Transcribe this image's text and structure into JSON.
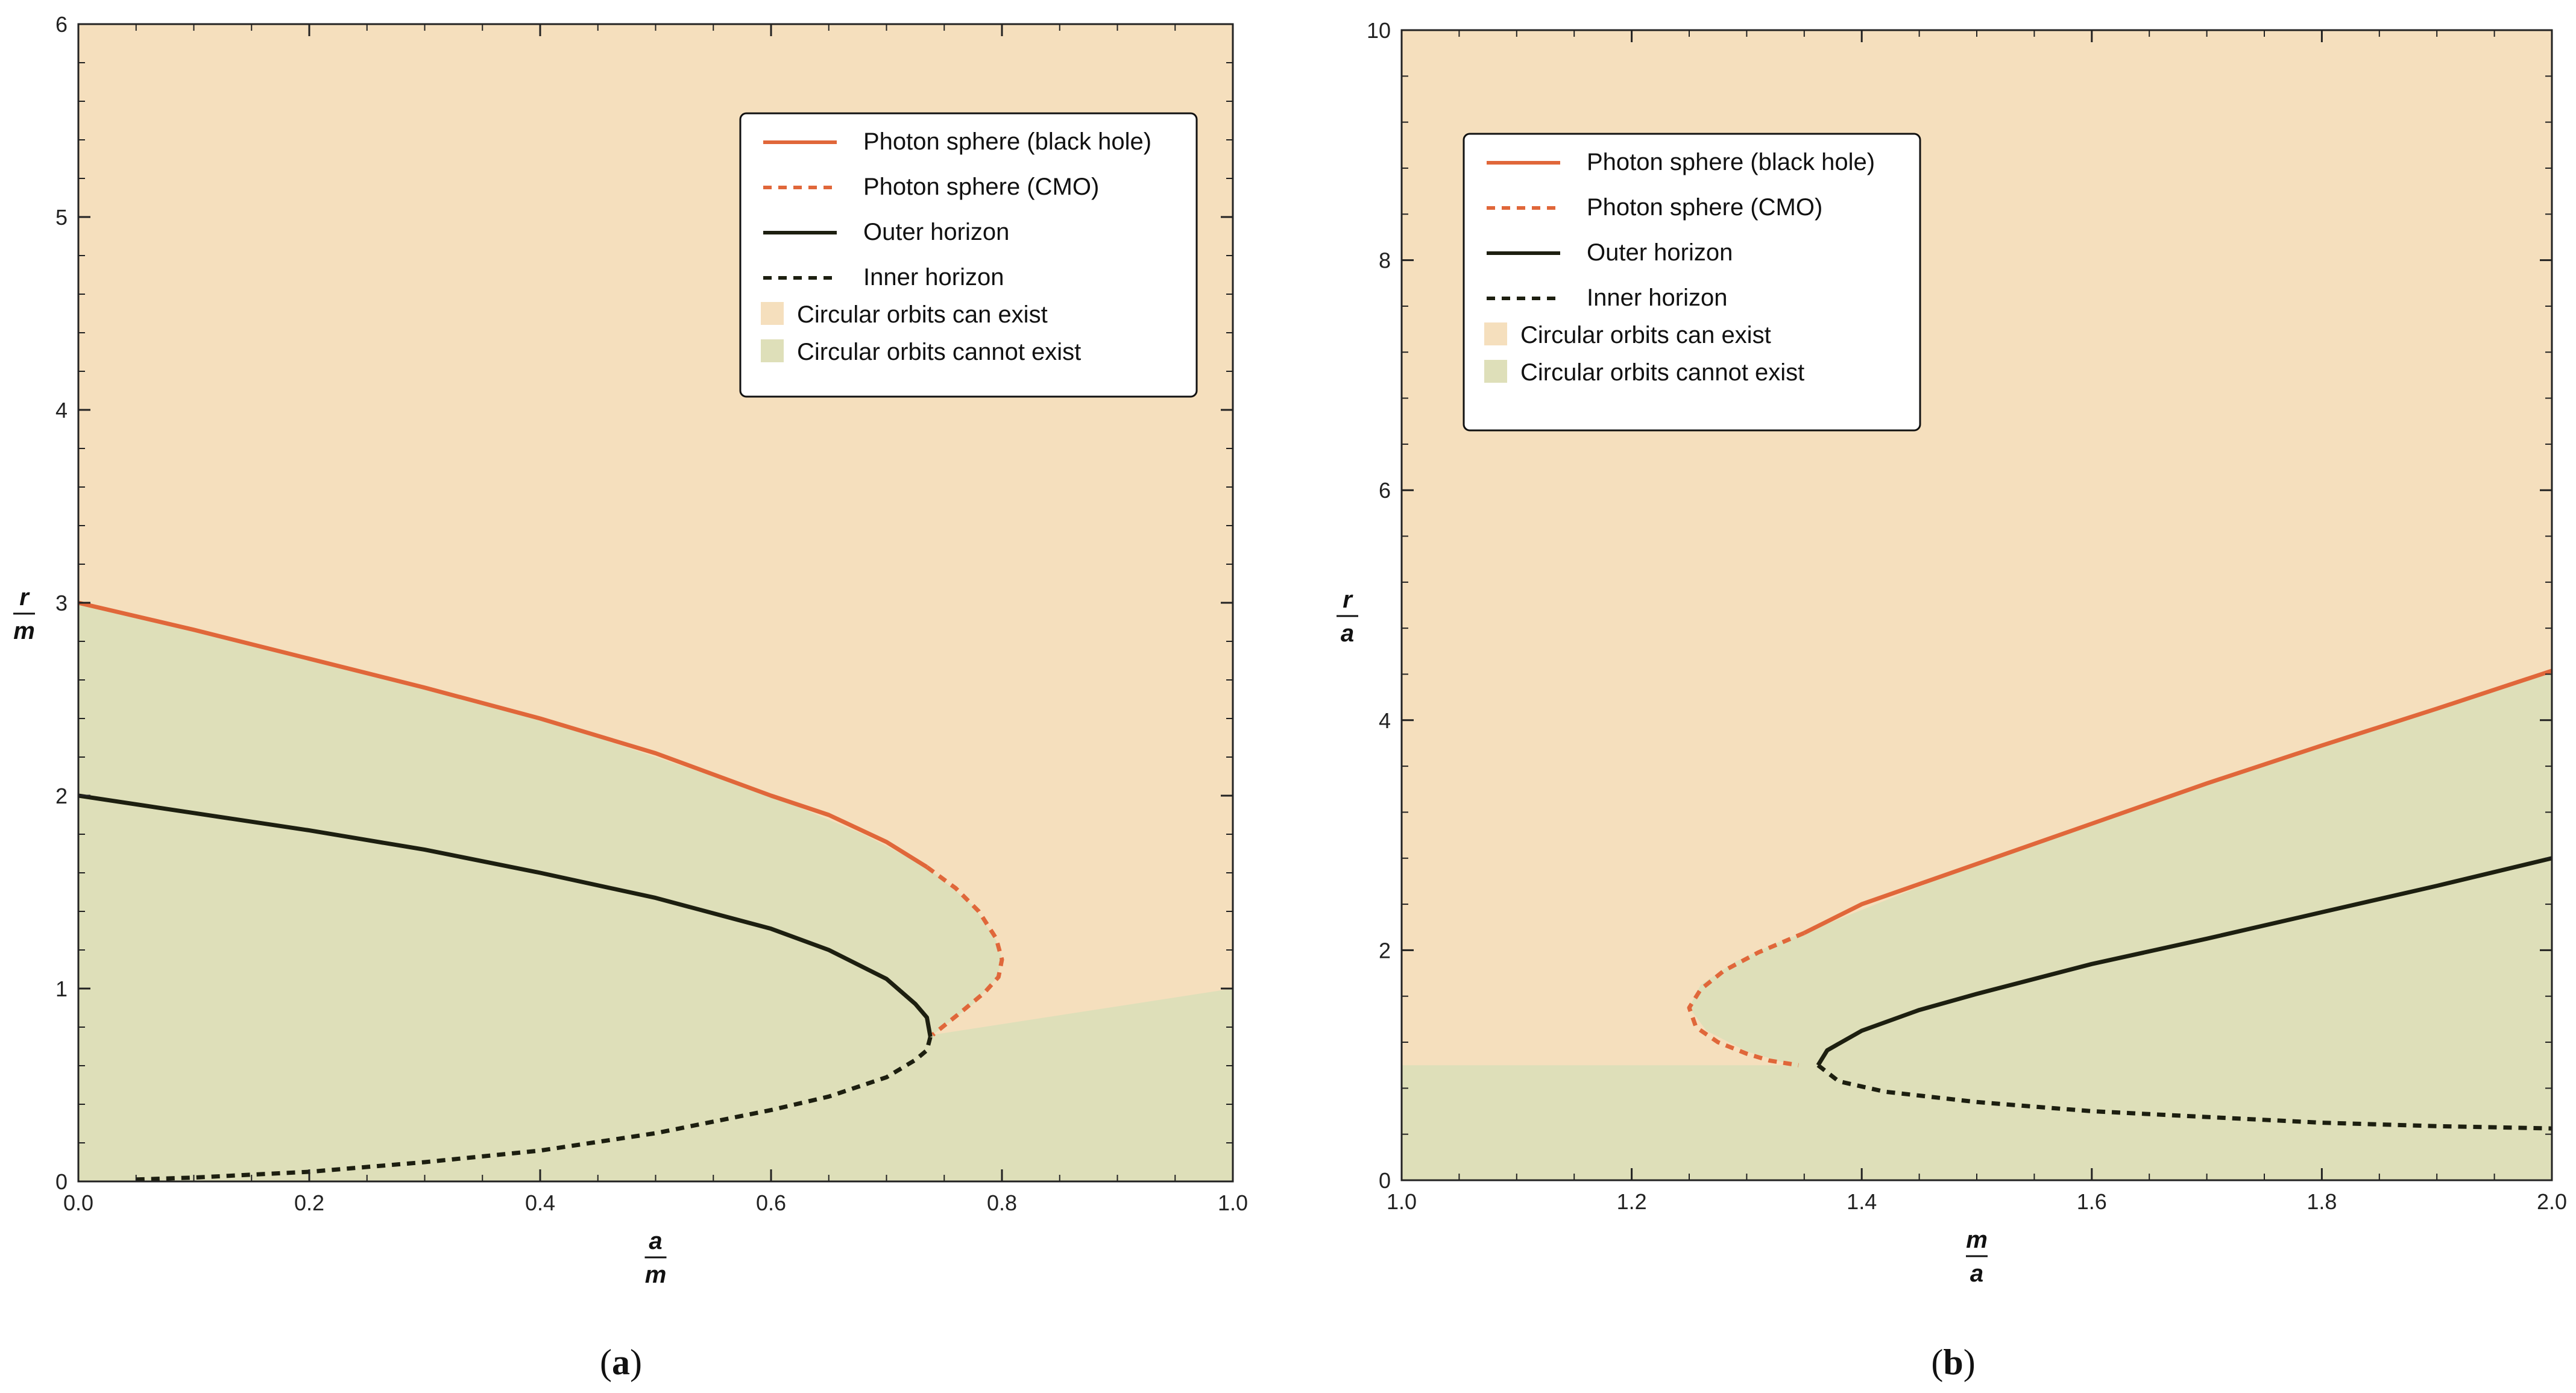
{
  "colors": {
    "can_exist": "#f5dfbd",
    "cannot_exist": "#dedfb9",
    "photon": "#e0673a",
    "horizon": "#1d1f10",
    "axis": "#222222"
  },
  "chart_data": [
    {
      "type": "line",
      "panel_label": "a",
      "xlabel": {
        "num": "a",
        "den": "m"
      },
      "ylabel": {
        "num": "r",
        "den": "m"
      },
      "xlim": [
        0,
        1
      ],
      "ylim": [
        0,
        6
      ],
      "xticks": [
        0,
        0.2,
        0.4,
        0.6,
        0.8,
        1
      ],
      "xtick_labels": [
        "0.0",
        "0.2",
        "0.4",
        "0.6",
        "0.8",
        "1.0"
      ],
      "yticks": [
        0,
        1,
        2,
        3,
        4,
        5,
        6
      ],
      "ytick_labels": [
        "0",
        "1",
        "2",
        "3",
        "4",
        "5",
        "6"
      ],
      "regions": [
        {
          "name": "Circular orbits cannot exist",
          "key": "cannot_exist",
          "polygon": [
            [
              0,
              0
            ],
            [
              0,
              3
            ],
            [
              0.2,
              2.7
            ],
            [
              0.4,
              2.4
            ],
            [
              0.6,
              2.0
            ],
            [
              0.68,
              1.8
            ],
            [
              0.735,
              1.63
            ],
            [
              0.775,
              1.43
            ],
            [
              0.795,
              1.25
            ],
            [
              0.8,
              1.15
            ],
            [
              0.795,
              1.05
            ],
            [
              0.775,
              0.92
            ],
            [
              0.74,
              0.76
            ],
            [
              1,
              1
            ],
            [
              1,
              0
            ]
          ]
        }
      ],
      "series": [
        {
          "name": "Photon sphere (black hole)",
          "color_key": "photon",
          "style": "solid",
          "points": [
            [
              0,
              3
            ],
            [
              0.1,
              2.86
            ],
            [
              0.2,
              2.71
            ],
            [
              0.3,
              2.56
            ],
            [
              0.4,
              2.4
            ],
            [
              0.5,
              2.22
            ],
            [
              0.6,
              2.0
            ],
            [
              0.65,
              1.9
            ],
            [
              0.7,
              1.76
            ],
            [
              0.735,
              1.63
            ]
          ]
        },
        {
          "name": "Photon sphere (CMO)",
          "color_key": "photon",
          "style": "dashed",
          "points": [
            [
              0.735,
              1.63
            ],
            [
              0.76,
              1.52
            ],
            [
              0.78,
              1.4
            ],
            [
              0.795,
              1.26
            ],
            [
              0.8,
              1.15
            ],
            [
              0.797,
              1.06
            ],
            [
              0.785,
              0.98
            ],
            [
              0.765,
              0.88
            ],
            [
              0.74,
              0.76
            ]
          ]
        },
        {
          "name": "Outer horizon",
          "color_key": "horizon",
          "style": "solid",
          "points": [
            [
              0,
              2
            ],
            [
              0.1,
              1.91
            ],
            [
              0.2,
              1.82
            ],
            [
              0.3,
              1.72
            ],
            [
              0.4,
              1.6
            ],
            [
              0.5,
              1.47
            ],
            [
              0.6,
              1.31
            ],
            [
              0.65,
              1.2
            ],
            [
              0.7,
              1.05
            ],
            [
              0.725,
              0.92
            ],
            [
              0.735,
              0.85
            ],
            [
              0.738,
              0.75
            ]
          ]
        },
        {
          "name": "Inner horizon",
          "color_key": "horizon",
          "style": "dashed",
          "points": [
            [
              0.05,
              0.01
            ],
            [
              0.1,
              0.02
            ],
            [
              0.2,
              0.05
            ],
            [
              0.3,
              0.1
            ],
            [
              0.4,
              0.16
            ],
            [
              0.5,
              0.25
            ],
            [
              0.6,
              0.37
            ],
            [
              0.65,
              0.44
            ],
            [
              0.7,
              0.54
            ],
            [
              0.725,
              0.63
            ],
            [
              0.735,
              0.68
            ],
            [
              0.738,
              0.75
            ]
          ]
        }
      ],
      "legend": {
        "position": "top-right",
        "entries": [
          {
            "label": "Photon sphere (black hole)",
            "kind": "line",
            "color_key": "photon",
            "style": "solid"
          },
          {
            "label": "Photon sphere (CMO)",
            "kind": "line",
            "color_key": "photon",
            "style": "dashed"
          },
          {
            "label": "Outer horizon",
            "kind": "line",
            "color_key": "horizon",
            "style": "solid"
          },
          {
            "label": "Inner horizon",
            "kind": "line",
            "color_key": "horizon",
            "style": "dashed"
          },
          {
            "label": "Circular orbits can exist",
            "kind": "swatch",
            "color_key": "can_exist"
          },
          {
            "label": "Circular orbits cannot exist",
            "kind": "swatch",
            "color_key": "cannot_exist"
          }
        ]
      }
    },
    {
      "type": "line",
      "panel_label": "b",
      "xlabel": {
        "num": "m",
        "den": "a"
      },
      "ylabel": {
        "num": "r",
        "den": "a"
      },
      "xlim": [
        1,
        2
      ],
      "ylim": [
        0,
        10
      ],
      "xticks": [
        1,
        1.2,
        1.4,
        1.6,
        1.8,
        2
      ],
      "xtick_labels": [
        "1.0",
        "1.2",
        "1.4",
        "1.6",
        "1.8",
        "2.0"
      ],
      "yticks": [
        0,
        2,
        4,
        6,
        8,
        10
      ],
      "ytick_labels": [
        "0",
        "2",
        "4",
        "6",
        "8",
        "10"
      ],
      "regions": [
        {
          "name": "Circular orbits cannot exist",
          "key": "cannot_exist",
          "polygon": [
            [
              1,
              0
            ],
            [
              1,
              1
            ],
            [
              1.34,
              1.0
            ],
            [
              1.3,
              1.12
            ],
            [
              1.265,
              1.3
            ],
            [
              1.25,
              1.5
            ],
            [
              1.26,
              1.7
            ],
            [
              1.29,
              1.9
            ],
            [
              1.33,
              2.08
            ],
            [
              1.35,
              2.15
            ],
            [
              1.5,
              2.75
            ],
            [
              1.7,
              3.45
            ],
            [
              1.9,
              4.1
            ],
            [
              2,
              4.43
            ],
            [
              2,
              0
            ]
          ]
        }
      ],
      "series": [
        {
          "name": "Photon sphere (black hole)",
          "color_key": "photon",
          "style": "solid",
          "points": [
            [
              1.35,
              2.15
            ],
            [
              1.4,
              2.4
            ],
            [
              1.5,
              2.75
            ],
            [
              1.6,
              3.1
            ],
            [
              1.7,
              3.45
            ],
            [
              1.8,
              3.78
            ],
            [
              1.9,
              4.1
            ],
            [
              2,
              4.43
            ]
          ]
        },
        {
          "name": "Photon sphere (CMO)",
          "color_key": "photon",
          "style": "dashed",
          "points": [
            [
              1.35,
              2.15
            ],
            [
              1.31,
              1.98
            ],
            [
              1.28,
              1.82
            ],
            [
              1.26,
              1.66
            ],
            [
              1.25,
              1.5
            ],
            [
              1.256,
              1.33
            ],
            [
              1.275,
              1.2
            ],
            [
              1.3,
              1.1
            ],
            [
              1.32,
              1.04
            ],
            [
              1.345,
              1.0
            ]
          ]
        },
        {
          "name": "Outer horizon",
          "color_key": "horizon",
          "style": "solid",
          "points": [
            [
              1.362,
              1.0
            ],
            [
              1.37,
              1.13
            ],
            [
              1.4,
              1.3
            ],
            [
              1.45,
              1.48
            ],
            [
              1.5,
              1.62
            ],
            [
              1.6,
              1.88
            ],
            [
              1.7,
              2.1
            ],
            [
              1.8,
              2.33
            ],
            [
              1.9,
              2.56
            ],
            [
              2,
              2.8
            ]
          ]
        },
        {
          "name": "Inner horizon",
          "color_key": "horizon",
          "style": "dashed",
          "points": [
            [
              1.362,
              1.0
            ],
            [
              1.38,
              0.86
            ],
            [
              1.42,
              0.77
            ],
            [
              1.5,
              0.68
            ],
            [
              1.6,
              0.6
            ],
            [
              1.7,
              0.55
            ],
            [
              1.8,
              0.5
            ],
            [
              1.9,
              0.47
            ],
            [
              2,
              0.45
            ]
          ]
        }
      ],
      "legend": {
        "position": "top-left",
        "entries": [
          {
            "label": "Photon sphere (black hole)",
            "kind": "line",
            "color_key": "photon",
            "style": "solid"
          },
          {
            "label": "Photon sphere (CMO)",
            "kind": "line",
            "color_key": "photon",
            "style": "dashed"
          },
          {
            "label": "Outer horizon",
            "kind": "line",
            "color_key": "horizon",
            "style": "solid"
          },
          {
            "label": "Inner horizon",
            "kind": "line",
            "color_key": "horizon",
            "style": "dashed"
          },
          {
            "label": "Circular orbits can exist",
            "kind": "swatch",
            "color_key": "can_exist"
          },
          {
            "label": "Circular orbits cannot exist",
            "kind": "swatch",
            "color_key": "cannot_exist"
          }
        ]
      }
    }
  ],
  "captions": [
    {
      "open": "(",
      "letter": "a",
      "close": ")"
    },
    {
      "open": "(",
      "letter": "b",
      "close": ")"
    }
  ]
}
